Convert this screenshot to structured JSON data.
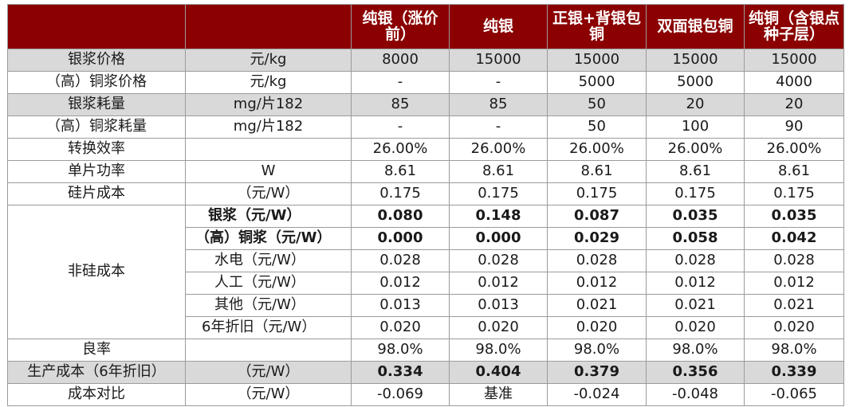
{
  "header": {
    "col0": "",
    "col1": "",
    "cols": [
      "纯银（涨价前）",
      "纯银",
      "正银+背银包铜",
      "双面银包铜",
      "纯铜（含银点种子层）"
    ]
  },
  "rows": [
    {
      "label": "银浆价格",
      "unit": "元/kg",
      "values": [
        "8000",
        "15000",
        "15000",
        "15000",
        "15000"
      ]
    },
    {
      "label": "（高）铜浆价格",
      "unit": "元/kg",
      "values": [
        "-",
        "-",
        "5000",
        "5000",
        "4000"
      ]
    },
    {
      "label": "银浆耗量",
      "unit": "mg/片182",
      "values": [
        "85",
        "85",
        "50",
        "20",
        "20"
      ]
    },
    {
      "label": "（高）铜浆耗量",
      "unit": "mg/片182",
      "values": [
        "-",
        "-",
        "50",
        "100",
        "90"
      ]
    },
    {
      "label": "转换效率",
      "unit": "",
      "values": [
        "26.00%",
        "26.00%",
        "26.00%",
        "26.00%",
        "26.00%"
      ]
    },
    {
      "label": "单片功率",
      "unit": "W",
      "values": [
        "8.61",
        "8.61",
        "8.61",
        "8.61",
        "8.61"
      ]
    },
    {
      "label": "硅片成本",
      "unit": "（元/W）",
      "values": [
        "0.175",
        "0.175",
        "0.175",
        "0.175",
        "0.175"
      ]
    }
  ],
  "nonsi": {
    "label": "非硅成本",
    "sub": [
      {
        "label": "银浆（元/W）",
        "values": [
          "0.080",
          "0.148",
          "0.087",
          "0.035",
          "0.035"
        ]
      },
      {
        "label": "（高）铜浆（元/W）",
        "values": [
          "0.000",
          "0.000",
          "0.029",
          "0.058",
          "0.042"
        ]
      },
      {
        "label": "水电（元/W）",
        "values": [
          "0.028",
          "0.028",
          "0.028",
          "0.028",
          "0.028"
        ]
      },
      {
        "label": "人工（元/W）",
        "values": [
          "0.012",
          "0.012",
          "0.012",
          "0.012",
          "0.012"
        ]
      },
      {
        "label": "其他（元/W）",
        "values": [
          "0.013",
          "0.013",
          "0.021",
          "0.021",
          "0.021"
        ]
      },
      {
        "label": "6年折旧（元/W）",
        "values": [
          "0.020",
          "0.020",
          "0.020",
          "0.020",
          "0.020"
        ]
      }
    ]
  },
  "yield_row": {
    "label": "良率",
    "unit": "",
    "values": [
      "98.0%",
      "98.0%",
      "98.0%",
      "98.0%",
      "98.0%"
    ]
  },
  "prod_row": {
    "label": "生产成本（6年折旧）",
    "unit": "（元/W）",
    "values": [
      "0.334",
      "0.404",
      "0.379",
      "0.356",
      "0.339"
    ]
  },
  "cmp_row": {
    "label": "成本对比",
    "unit": "（元/W）",
    "values": [
      "-0.069",
      "基准",
      "-0.024",
      "-0.048",
      "-0.065"
    ]
  },
  "colors": {
    "header_bg": "#8b0000",
    "stripe": "#d9d9d9",
    "border": "#9b9b9b"
  }
}
